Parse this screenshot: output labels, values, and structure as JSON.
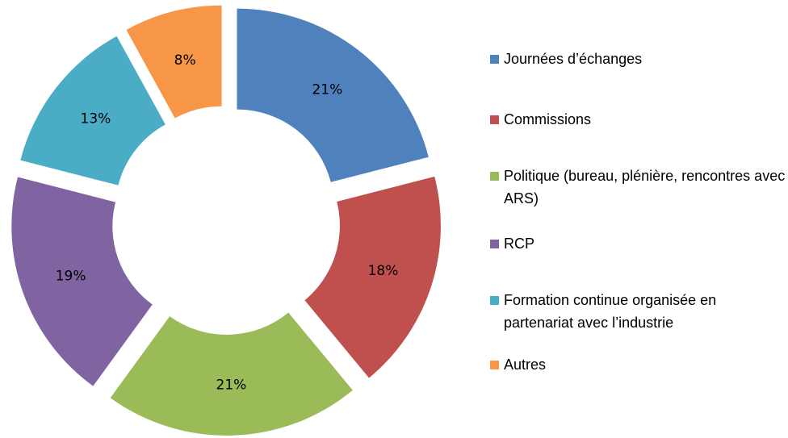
{
  "chart_data": {
    "type": "donut",
    "categories": [
      "Journées d’échanges",
      "Commissions",
      "Politique (bureau, plénière, rencontres avec ARS)",
      "RCP",
      "Formation continue organisée en partenariat avec l’industrie",
      "Autres"
    ],
    "values": [
      21,
      18,
      21,
      19,
      13,
      8
    ],
    "value_labels": [
      "21%",
      "18%",
      "21%",
      "19%",
      "13%",
      "8%"
    ],
    "colors": [
      "#4f81bd",
      "#c0504d",
      "#9bbb59",
      "#8064a2",
      "#4bacc6",
      "#f79646"
    ],
    "legend": "right"
  }
}
